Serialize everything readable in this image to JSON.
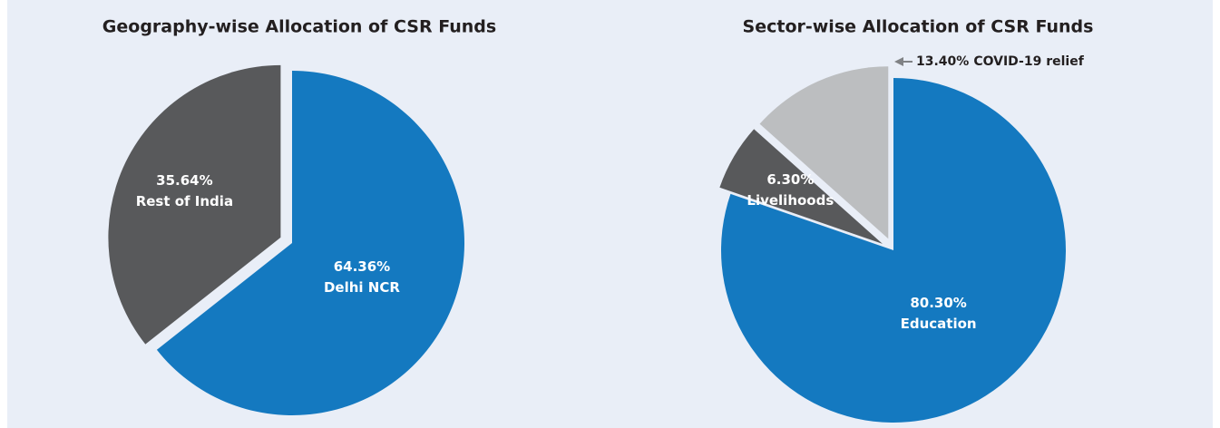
{
  "chart_data": [
    {
      "type": "pie",
      "title": "Geography-wise Allocation of CSR Funds",
      "categories": [
        "Delhi NCR",
        "Rest of India"
      ],
      "values": [
        64.36,
        35.64
      ],
      "value_labels": [
        "64.36%",
        "35.64%"
      ],
      "colors": [
        "#1479c0",
        "#58595b"
      ]
    },
    {
      "type": "pie",
      "title": "Sector-wise Allocation of CSR Funds",
      "categories": [
        "Education",
        "Livelihoods",
        "COVID-19 relief"
      ],
      "values": [
        80.3,
        6.3,
        13.4
      ],
      "value_labels": [
        "80.30%",
        "6.30%",
        "13.40%"
      ],
      "colors": [
        "#1479c0",
        "#58595b",
        "#bcbec0"
      ]
    }
  ]
}
